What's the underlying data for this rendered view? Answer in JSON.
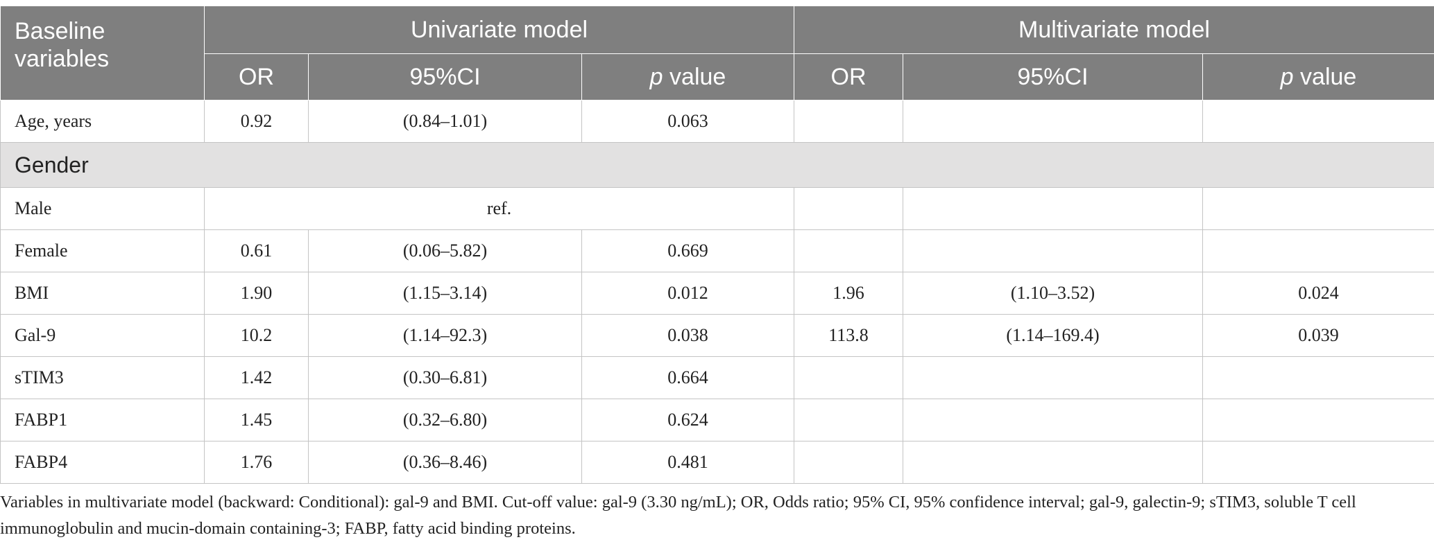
{
  "header": {
    "baseline_label": "Baseline variables",
    "univariate_label": "Univariate model",
    "multivariate_label": "Multivariate model",
    "or_label": "OR",
    "ci_label": "95%CI",
    "p_italic": "p",
    "p_suffix": " value"
  },
  "rows": {
    "age": {
      "label": "Age, years",
      "u_or": "0.92",
      "u_ci": "(0.84–1.01)",
      "u_p": "0.063",
      "m_or": "",
      "m_ci": "",
      "m_p": ""
    },
    "gender_group": {
      "label": "Gender"
    },
    "male": {
      "label": "Male",
      "ref": "ref."
    },
    "female": {
      "label": "Female",
      "u_or": "0.61",
      "u_ci": "(0.06–5.82)",
      "u_p": "0.669",
      "m_or": "",
      "m_ci": "",
      "m_p": ""
    },
    "bmi": {
      "label": "BMI",
      "u_or": "1.90",
      "u_ci": "(1.15–3.14)",
      "u_p": "0.012",
      "m_or": "1.96",
      "m_ci": "(1.10–3.52)",
      "m_p": "0.024"
    },
    "gal9": {
      "label": "Gal-9",
      "u_or": "10.2",
      "u_ci": "(1.14–92.3)",
      "u_p": "0.038",
      "m_or": "113.8",
      "m_ci": "(1.14–169.4)",
      "m_p": "0.039"
    },
    "stim3": {
      "label": "sTIM3",
      "u_or": "1.42",
      "u_ci": "(0.30–6.81)",
      "u_p": "0.664",
      "m_or": "",
      "m_ci": "",
      "m_p": ""
    },
    "fabp1": {
      "label": "FABP1",
      "u_or": "1.45",
      "u_ci": "(0.32–6.80)",
      "u_p": "0.624",
      "m_or": "",
      "m_ci": "",
      "m_p": ""
    },
    "fabp4": {
      "label": "FABP4",
      "u_or": "1.76",
      "u_ci": "(0.36–8.46)",
      "u_p": "0.481",
      "m_or": "",
      "m_ci": "",
      "m_p": ""
    }
  },
  "footnote": "Variables in multivariate model (backward: Conditional): gal-9 and BMI. Cut-off value: gal-9 (3.30 ng/mL); OR, Odds ratio; 95% CI, 95% confidence interval; gal-9, galectin-9; sTIM3, soluble T cell immunoglobulin and mucin-domain containing-3; FABP, fatty acid binding proteins."
}
